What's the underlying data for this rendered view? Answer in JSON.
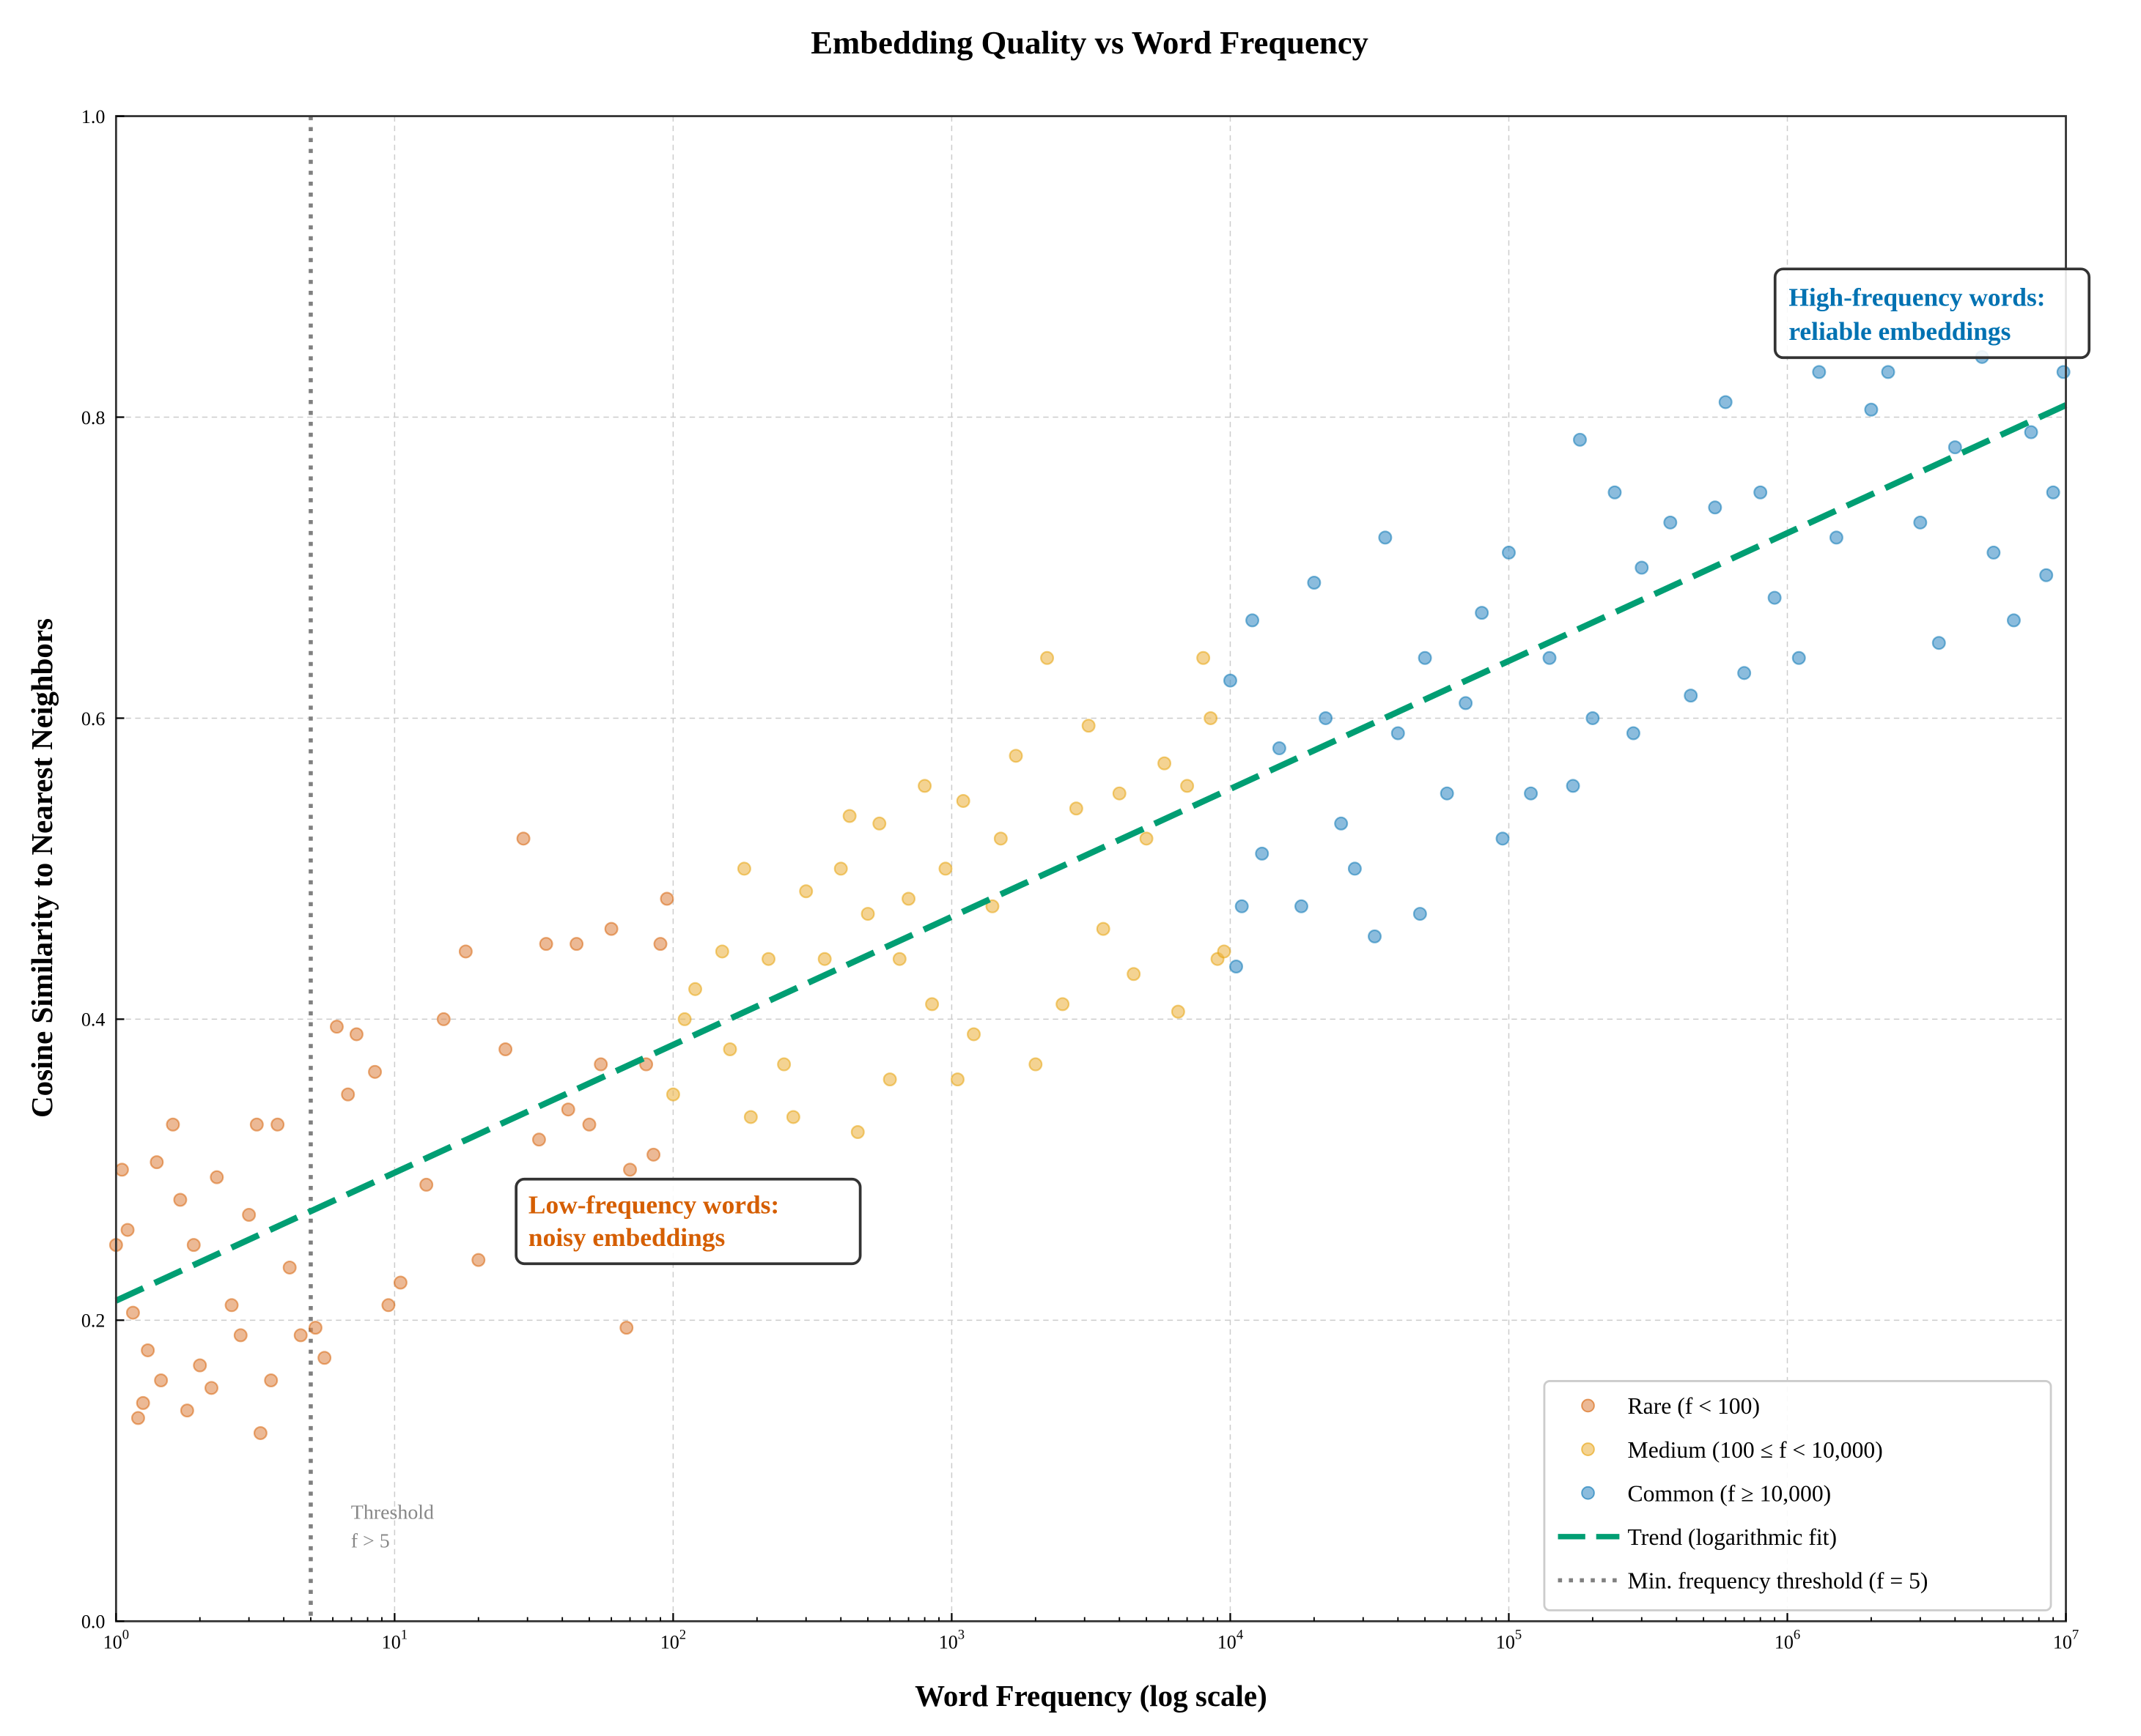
{
  "chart_data": {
    "type": "scatter",
    "title": "Embedding Quality vs Word Frequency",
    "xlabel": "Word Frequency (log scale)",
    "ylabel": "Cosine Similarity to Nearest Neighbors",
    "xscale": "log",
    "xlim": [
      1,
      10000000
    ],
    "ylim": [
      0.0,
      1.0
    ],
    "grid": true,
    "legend_position": "lower-right",
    "x_tick_labels": [
      {
        "base": "10",
        "exp": "0"
      },
      {
        "base": "10",
        "exp": "1"
      },
      {
        "base": "10",
        "exp": "2"
      },
      {
        "base": "10",
        "exp": "3"
      },
      {
        "base": "10",
        "exp": "4"
      },
      {
        "base": "10",
        "exp": "5"
      },
      {
        "base": "10",
        "exp": "6"
      },
      {
        "base": "10",
        "exp": "7"
      }
    ],
    "y_tick_labels": [
      "0.0",
      "0.2",
      "0.4",
      "0.6",
      "0.8",
      "1.0"
    ],
    "series": [
      {
        "name": "Rare (f < 100)",
        "color": "#E08B4E",
        "points": [
          [
            1.0,
            0.25
          ],
          [
            1.05,
            0.3
          ],
          [
            1.1,
            0.26
          ],
          [
            1.15,
            0.205
          ],
          [
            1.2,
            0.135
          ],
          [
            1.25,
            0.145
          ],
          [
            1.3,
            0.18
          ],
          [
            1.4,
            0.305
          ],
          [
            1.45,
            0.16
          ],
          [
            1.6,
            0.33
          ],
          [
            1.7,
            0.28
          ],
          [
            1.8,
            0.14
          ],
          [
            1.9,
            0.25
          ],
          [
            2.0,
            0.17
          ],
          [
            2.2,
            0.155
          ],
          [
            2.3,
            0.295
          ],
          [
            2.6,
            0.21
          ],
          [
            2.8,
            0.19
          ],
          [
            3.0,
            0.27
          ],
          [
            3.2,
            0.33
          ],
          [
            3.3,
            0.125
          ],
          [
            3.6,
            0.16
          ],
          [
            3.8,
            0.33
          ],
          [
            4.2,
            0.235
          ],
          [
            4.6,
            0.19
          ],
          [
            5.2,
            0.195
          ],
          [
            5.6,
            0.175
          ],
          [
            6.2,
            0.395
          ],
          [
            6.8,
            0.35
          ],
          [
            7.3,
            0.39
          ],
          [
            8.5,
            0.365
          ],
          [
            9.5,
            0.21
          ],
          [
            10.5,
            0.225
          ],
          [
            13,
            0.29
          ],
          [
            15,
            0.4
          ],
          [
            18,
            0.445
          ],
          [
            20,
            0.24
          ],
          [
            25,
            0.38
          ],
          [
            29,
            0.52
          ],
          [
            33,
            0.32
          ],
          [
            35,
            0.45
          ],
          [
            42,
            0.34
          ],
          [
            45,
            0.45
          ],
          [
            50,
            0.33
          ],
          [
            55,
            0.37
          ],
          [
            60,
            0.46
          ],
          [
            68,
            0.195
          ],
          [
            70,
            0.3
          ],
          [
            80,
            0.37
          ],
          [
            85,
            0.31
          ],
          [
            90,
            0.45
          ],
          [
            95,
            0.48
          ]
        ]
      },
      {
        "name": "Medium (100 ≤ f < 10,000)",
        "color": "#EDB64A",
        "points": [
          [
            100,
            0.35
          ],
          [
            110,
            0.4
          ],
          [
            120,
            0.42
          ],
          [
            150,
            0.445
          ],
          [
            160,
            0.38
          ],
          [
            180,
            0.5
          ],
          [
            190,
            0.335
          ],
          [
            220,
            0.44
          ],
          [
            250,
            0.37
          ],
          [
            270,
            0.335
          ],
          [
            300,
            0.485
          ],
          [
            350,
            0.44
          ],
          [
            400,
            0.5
          ],
          [
            430,
            0.535
          ],
          [
            460,
            0.325
          ],
          [
            500,
            0.47
          ],
          [
            550,
            0.53
          ],
          [
            600,
            0.36
          ],
          [
            650,
            0.44
          ],
          [
            700,
            0.48
          ],
          [
            800,
            0.555
          ],
          [
            850,
            0.41
          ],
          [
            950,
            0.5
          ],
          [
            1050,
            0.36
          ],
          [
            1100,
            0.545
          ],
          [
            1200,
            0.39
          ],
          [
            1400,
            0.475
          ],
          [
            1500,
            0.52
          ],
          [
            1700,
            0.575
          ],
          [
            2000,
            0.37
          ],
          [
            2200,
            0.64
          ],
          [
            2500,
            0.41
          ],
          [
            2800,
            0.54
          ],
          [
            3100,
            0.595
          ],
          [
            3500,
            0.46
          ],
          [
            4000,
            0.55
          ],
          [
            4500,
            0.43
          ],
          [
            5000,
            0.52
          ],
          [
            5800,
            0.57
          ],
          [
            6500,
            0.405
          ],
          [
            7000,
            0.555
          ],
          [
            8000,
            0.64
          ],
          [
            8500,
            0.6
          ],
          [
            9000,
            0.44
          ],
          [
            9500,
            0.445
          ]
        ]
      },
      {
        "name": "Common (f ≥ 10,000)",
        "color": "#3D8FC6",
        "points": [
          [
            10000,
            0.625
          ],
          [
            10500,
            0.435
          ],
          [
            11000,
            0.475
          ],
          [
            12000,
            0.665
          ],
          [
            13000,
            0.51
          ],
          [
            15000,
            0.58
          ],
          [
            18000,
            0.475
          ],
          [
            20000,
            0.69
          ],
          [
            22000,
            0.6
          ],
          [
            25000,
            0.53
          ],
          [
            28000,
            0.5
          ],
          [
            33000,
            0.455
          ],
          [
            36000,
            0.72
          ],
          [
            40000,
            0.59
          ],
          [
            48000,
            0.47
          ],
          [
            50000,
            0.64
          ],
          [
            60000,
            0.55
          ],
          [
            70000,
            0.61
          ],
          [
            80000,
            0.67
          ],
          [
            95000,
            0.52
          ],
          [
            100000,
            0.71
          ],
          [
            120000,
            0.55
          ],
          [
            140000,
            0.64
          ],
          [
            170000,
            0.555
          ],
          [
            180000,
            0.785
          ],
          [
            200000,
            0.6
          ],
          [
            240000,
            0.75
          ],
          [
            280000,
            0.59
          ],
          [
            300000,
            0.7
          ],
          [
            380000,
            0.73
          ],
          [
            450000,
            0.615
          ],
          [
            550000,
            0.74
          ],
          [
            600000,
            0.81
          ],
          [
            700000,
            0.63
          ],
          [
            800000,
            0.75
          ],
          [
            900000,
            0.68
          ],
          [
            1100000,
            0.64
          ],
          [
            1300000,
            0.83
          ],
          [
            1500000,
            0.72
          ],
          [
            2000000,
            0.805
          ],
          [
            2300000,
            0.83
          ],
          [
            3000000,
            0.73
          ],
          [
            3500000,
            0.65
          ],
          [
            4000000,
            0.78
          ],
          [
            5000000,
            0.84
          ],
          [
            5500000,
            0.71
          ],
          [
            6500000,
            0.665
          ],
          [
            7500000,
            0.79
          ],
          [
            8500000,
            0.695
          ],
          [
            9000000,
            0.75
          ],
          [
            9800000,
            0.83
          ]
        ]
      }
    ],
    "trend": {
      "name": "Trend (logarithmic fit)",
      "color": "#009E73",
      "style": "dashed",
      "intercept": 0.213,
      "slope_per_decade": 0.085
    },
    "threshold": {
      "name": "Min. frequency threshold (f = 5)",
      "x": 5,
      "color": "#808080",
      "style": "dotted",
      "label_line1": "Threshold",
      "label_line2": "f > 5"
    },
    "annotations": [
      {
        "line1": "Low-frequency words:",
        "line2": "noisy embeddings",
        "color": "#D55E00"
      },
      {
        "line1": "High-frequency words:",
        "line2": "reliable embeddings",
        "color": "#0072B2"
      }
    ]
  }
}
